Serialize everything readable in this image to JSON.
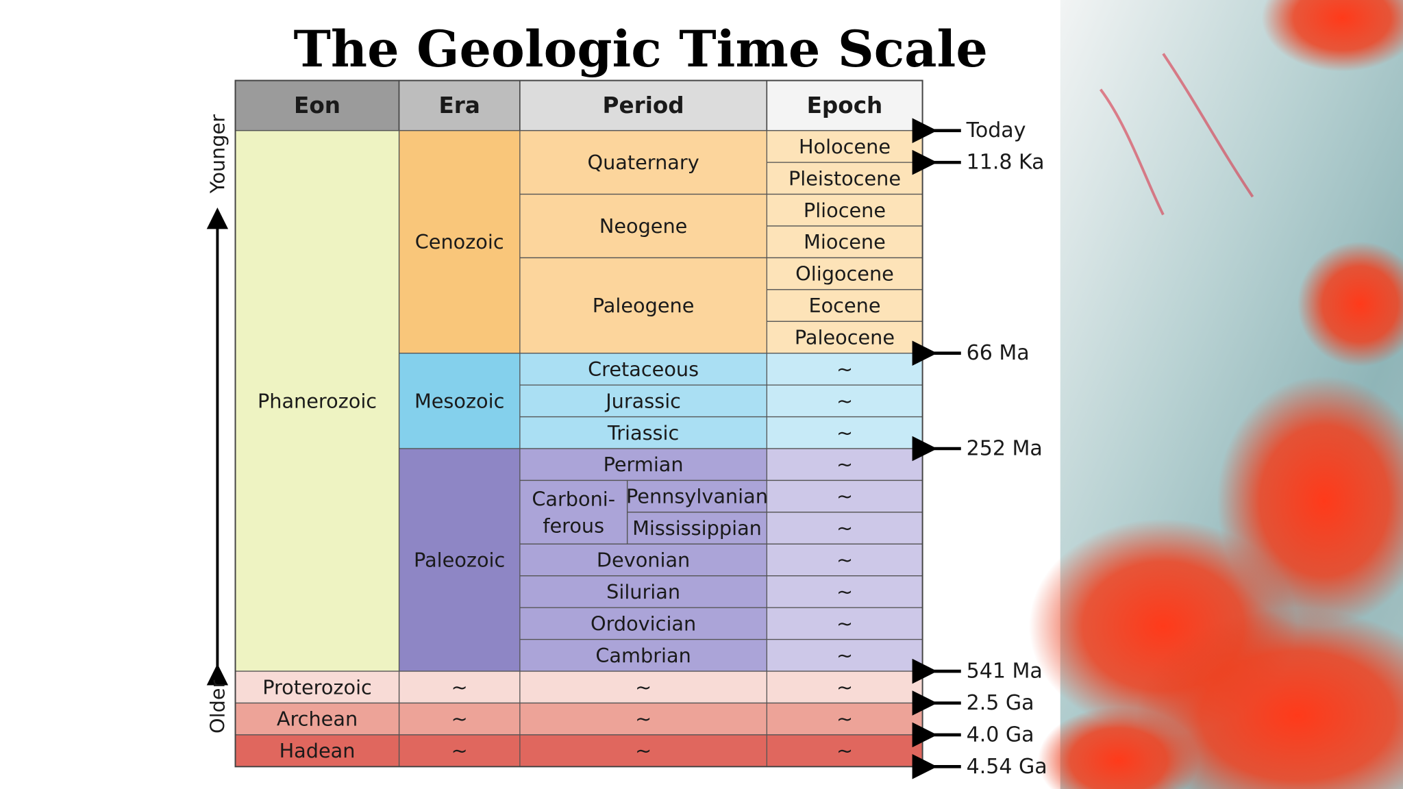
{
  "title": "The Geologic Time Scale",
  "headers": [
    "Eon",
    "Era",
    "Period",
    "Epoch"
  ],
  "axis": {
    "top": "Younger",
    "bottom": "Older"
  },
  "eons": [
    {
      "name": "Phanerozoic",
      "eras": [
        {
          "name": "Cenozoic",
          "periods": [
            {
              "name": "Quaternary",
              "epochs": [
                "Holocene",
                "Pleistocene"
              ]
            },
            {
              "name": "Neogene",
              "epochs": [
                "Pliocene",
                "Miocene"
              ]
            },
            {
              "name": "Paleogene",
              "epochs": [
                "Oligocene",
                "Eocene",
                "Paleocene"
              ]
            }
          ]
        },
        {
          "name": "Mesozoic",
          "periods": [
            {
              "name": "Cretaceous",
              "epochs": [
                "~"
              ]
            },
            {
              "name": "Jurassic",
              "epochs": [
                "~"
              ]
            },
            {
              "name": "Triassic",
              "epochs": [
                "~"
              ]
            }
          ]
        },
        {
          "name": "Paleozoic",
          "periods": [
            {
              "name": "Permian",
              "epochs": [
                "~"
              ]
            },
            {
              "name_lines": [
                "Carboni-",
                "ferous"
              ],
              "subperiods": [
                {
                  "name": "Pennsylvanian",
                  "epochs": [
                    "~"
                  ]
                },
                {
                  "name": "Mississippian",
                  "epochs": [
                    "~"
                  ]
                }
              ]
            },
            {
              "name": "Devonian",
              "epochs": [
                "~"
              ]
            },
            {
              "name": "Silurian",
              "epochs": [
                "~"
              ]
            },
            {
              "name": "Ordovician",
              "epochs": [
                "~"
              ]
            },
            {
              "name": "Cambrian",
              "epochs": [
                "~"
              ]
            }
          ]
        }
      ]
    },
    {
      "name": "Proterozoic",
      "eras": [
        {
          "name": "~",
          "periods": [
            {
              "name": "~",
              "epochs": [
                "~"
              ]
            }
          ]
        }
      ]
    },
    {
      "name": "Archean",
      "eras": [
        {
          "name": "~",
          "periods": [
            {
              "name": "~",
              "epochs": [
                "~"
              ]
            }
          ]
        }
      ]
    },
    {
      "name": "Hadean",
      "eras": [
        {
          "name": "~",
          "periods": [
            {
              "name": "~",
              "epochs": [
                "~"
              ]
            }
          ]
        }
      ]
    }
  ],
  "markers": [
    "Today",
    "11.8 Ka",
    "66 Ma",
    "252 Ma",
    "541 Ma",
    "2.5 Ga",
    "4.0 Ga",
    "4.54 Ga"
  ]
}
